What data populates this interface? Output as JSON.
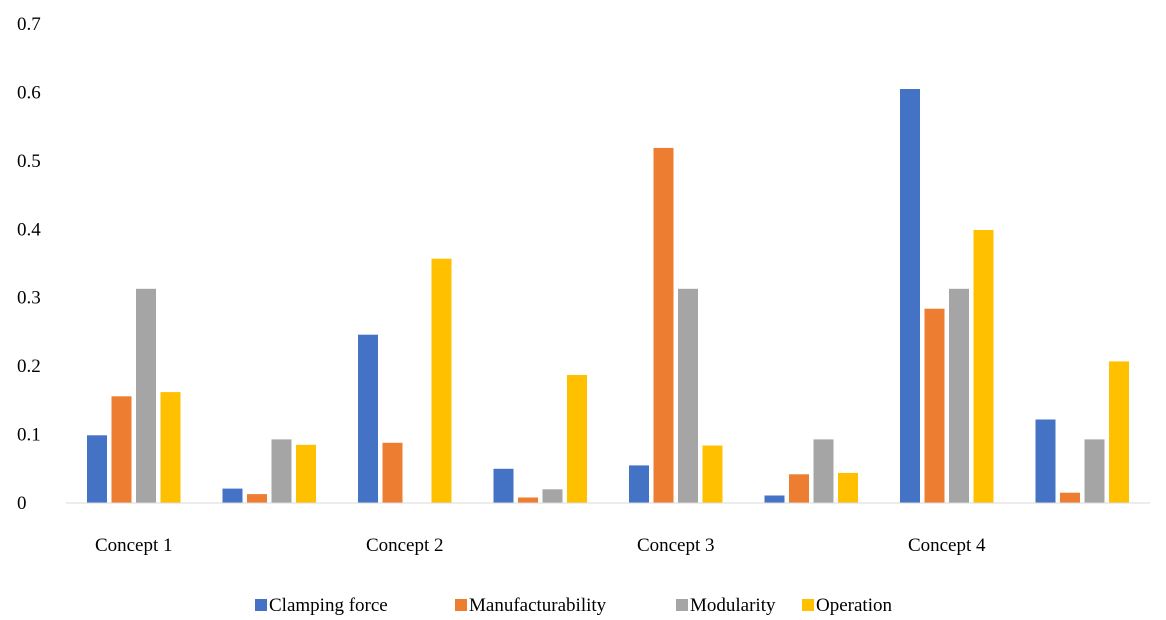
{
  "chart_data": {
    "type": "bar",
    "categories": [
      "Concept 1",
      "",
      "Concept 2",
      "",
      "Concept 3",
      "",
      "Concept 4",
      ""
    ],
    "series": [
      {
        "name": "Clamping force",
        "values": [
          0.099,
          0.021,
          0.246,
          0.05,
          0.055,
          0.011,
          0.605,
          0.122
        ]
      },
      {
        "name": "Manufacturability",
        "values": [
          0.156,
          0.013,
          0.088,
          0.008,
          0.519,
          0.042,
          0.284,
          0.015
        ]
      },
      {
        "name": "Modularity",
        "values": [
          0.313,
          0.093,
          0.0,
          0.02,
          0.313,
          0.093,
          0.313,
          0.093
        ]
      },
      {
        "name": "Operation",
        "values": [
          0.162,
          0.085,
          0.357,
          0.187,
          0.084,
          0.044,
          0.399,
          0.207
        ]
      }
    ],
    "title": "",
    "xlabel": "",
    "ylabel": "",
    "ylim": [
      0,
      0.7
    ],
    "yticks": [
      "0",
      "0.1",
      "0.2",
      "0.3",
      "0.4",
      "0.5",
      "0.6",
      "0.7"
    ],
    "grid": false,
    "legend_position": "bottom",
    "colors": [
      "#4472c4",
      "#ed7d31",
      "#a5a5a5",
      "#ffc000"
    ]
  }
}
